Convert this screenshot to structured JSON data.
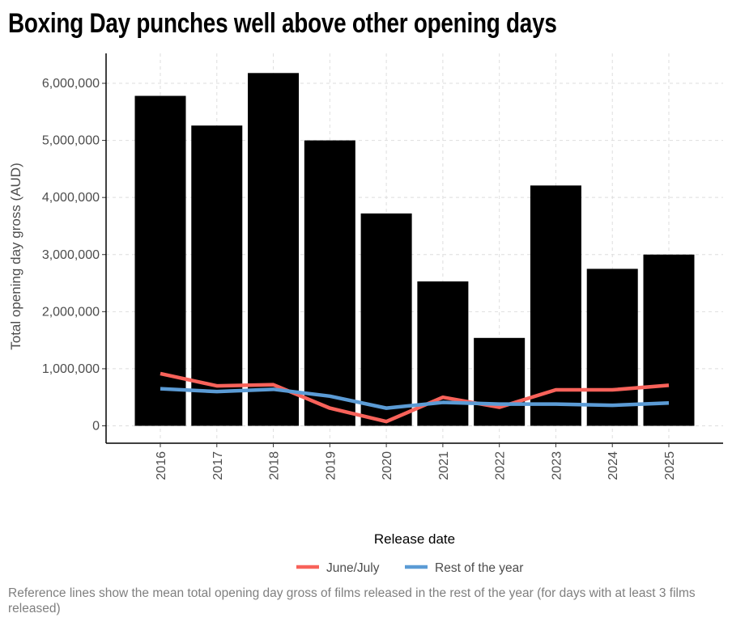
{
  "chart_data": {
    "type": "bar",
    "title": "Boxing Day punches well above other opening days",
    "xlabel": "Release date",
    "ylabel": "Total opening day gross (AUD)",
    "categories": [
      "2016",
      "2017",
      "2018",
      "2019",
      "2020",
      "2021",
      "2022",
      "2023",
      "2024",
      "2025"
    ],
    "values": [
      5780000,
      5260000,
      6180000,
      5000000,
      3720000,
      2530000,
      1540000,
      4210000,
      2750000,
      3000000
    ],
    "bar_color": "#000000",
    "lines": [
      {
        "name": "June/July",
        "color": "#F8625A",
        "values": [
          915000,
          700000,
          720000,
          310000,
          75000,
          500000,
          325000,
          630000,
          630000,
          710000
        ]
      },
      {
        "name": "Rest of the year",
        "color": "#5B9BD5",
        "values": [
          650000,
          600000,
          640000,
          520000,
          310000,
          410000,
          380000,
          380000,
          360000,
          400000
        ]
      }
    ],
    "ylim": [
      0,
      6500000
    ],
    "yticks": [
      0,
      1000000,
      2000000,
      3000000,
      4000000,
      5000000,
      6000000
    ],
    "ytick_labels": [
      "0",
      "1,000,000",
      "2,000,000",
      "3,000,000",
      "4,000,000",
      "5,000,000",
      "6,000,000"
    ],
    "grid": true,
    "legend_position": "bottom",
    "caption": "Reference lines show the mean total opening day gross of films released in the rest of the year (for days with at least 3 films released)"
  }
}
